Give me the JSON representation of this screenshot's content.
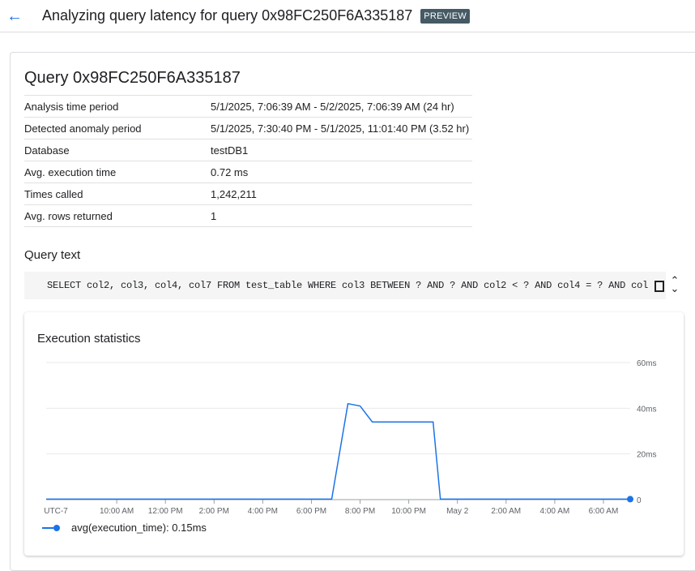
{
  "header": {
    "title": "Analyzing query latency for query 0x98FC250F6A335187",
    "badge": "PREVIEW"
  },
  "query": {
    "title": "Query 0x98FC250F6A335187",
    "details": [
      {
        "label": "Analysis time period",
        "value": "5/1/2025, 7:06:39 AM - 5/2/2025, 7:06:39 AM (24 hr)"
      },
      {
        "label": "Detected anomaly period",
        "value": "5/1/2025, 7:30:40 PM - 5/1/2025, 11:01:40 PM (3.52 hr)"
      },
      {
        "label": "Database",
        "value": "testDB1"
      },
      {
        "label": "Avg. execution time",
        "value": "0.72 ms"
      },
      {
        "label": "Times called",
        "value": "1,242,211"
      },
      {
        "label": "Avg. rows returned",
        "value": "1"
      }
    ],
    "text_label": "Query text",
    "text": "SELECT col2, col3, col4, col7 FROM test_table WHERE col3 BETWEEN ? AND ? AND col2 < ? AND col4 = ? AND col"
  },
  "chart_data": {
    "type": "line",
    "title": "Execution statistics",
    "xlim": [
      "2025-05-01T07:06",
      "2025-05-02T07:06"
    ],
    "ylim": [
      0,
      60
    ],
    "grid": true,
    "y_ticks": [
      "0",
      "20ms",
      "40ms",
      "60ms"
    ],
    "y_tick_values": [
      0,
      20,
      40,
      60
    ],
    "x_ticks": [
      {
        "t": "2025-05-01T07:30",
        "label": "UTC-7"
      },
      {
        "t": "2025-05-01T10:00",
        "label": "10:00 AM"
      },
      {
        "t": "2025-05-01T12:00",
        "label": "12:00 PM"
      },
      {
        "t": "2025-05-01T14:00",
        "label": "2:00 PM"
      },
      {
        "t": "2025-05-01T16:00",
        "label": "4:00 PM"
      },
      {
        "t": "2025-05-01T18:00",
        "label": "6:00 PM"
      },
      {
        "t": "2025-05-01T20:00",
        "label": "8:00 PM"
      },
      {
        "t": "2025-05-01T22:00",
        "label": "10:00 PM"
      },
      {
        "t": "2025-05-02T00:00",
        "label": "May 2"
      },
      {
        "t": "2025-05-02T02:00",
        "label": "2:00 AM"
      },
      {
        "t": "2025-05-02T04:00",
        "label": "4:00 AM"
      },
      {
        "t": "2025-05-02T06:00",
        "label": "6:00 AM"
      }
    ],
    "series": [
      {
        "name": "avg(execution_time): 0.15ms",
        "color": "#1a73e8",
        "points": [
          [
            "2025-05-01T07:06",
            0.2
          ],
          [
            "2025-05-01T18:50",
            0.2
          ],
          [
            "2025-05-01T19:30",
            42
          ],
          [
            "2025-05-01T20:00",
            41
          ],
          [
            "2025-05-01T20:30",
            34
          ],
          [
            "2025-05-01T23:00",
            34
          ],
          [
            "2025-05-01T23:18",
            0.2
          ],
          [
            "2025-05-02T07:06",
            0.2
          ]
        ]
      }
    ]
  }
}
